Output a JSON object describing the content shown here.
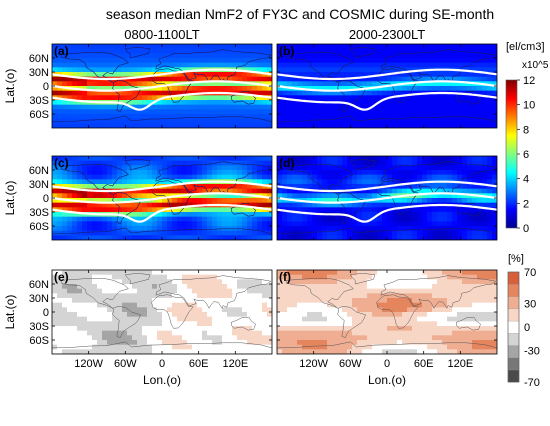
{
  "chart_data": {
    "type": "heatmap",
    "title": "season median NmF2 of FY3C and COSMIC during SE-month",
    "column_titles": [
      "0800-1100LT",
      "2000-2300LT"
    ],
    "xlabel": "Lon.(o)",
    "ylabel": "Lat.(o)",
    "x_ticks": [
      "120W",
      "60W",
      "0",
      "60E",
      "120E"
    ],
    "x_tick_values": [
      -120,
      -60,
      0,
      60,
      120
    ],
    "y_ticks": [
      "60N",
      "30N",
      "0",
      "30S",
      "60S"
    ],
    "y_tick_values": [
      60,
      30,
      0,
      -30,
      -60
    ],
    "xlim": [
      -180,
      180
    ],
    "ylim": [
      -90,
      90
    ],
    "panels": [
      {
        "label": "(a)",
        "local_time": "0800-1100LT",
        "row": 0,
        "col": 0,
        "kind": "density"
      },
      {
        "label": "(b)",
        "local_time": "2000-2300LT",
        "row": 0,
        "col": 1,
        "kind": "density"
      },
      {
        "label": "(c)",
        "local_time": "0800-1100LT",
        "row": 1,
        "col": 0,
        "kind": "density"
      },
      {
        "label": "(d)",
        "local_time": "2000-2300LT",
        "row": 1,
        "col": 1,
        "kind": "density"
      },
      {
        "label": "(e)",
        "local_time": "0800-1100LT",
        "row": 2,
        "col": 0,
        "kind": "difference"
      },
      {
        "label": "(f)",
        "local_time": "2000-2300LT",
        "row": 2,
        "col": 1,
        "kind": "difference"
      }
    ],
    "density_colorbar": {
      "unit": "[el/cm3]",
      "multiplier": "x10^5",
      "ticks": [
        12,
        10,
        8,
        6,
        4,
        2,
        0
      ],
      "range": [
        0,
        12
      ],
      "colors": [
        "#00008f",
        "#0000ff",
        "#0080ff",
        "#00ffff",
        "#80ff80",
        "#ffff00",
        "#ff8000",
        "#ff0000",
        "#800000"
      ]
    },
    "difference_colorbar": {
      "unit": "[%]",
      "ticks": [
        70,
        30,
        0,
        -30,
        -70
      ],
      "levels": [
        -70,
        -50,
        -30,
        -10,
        10,
        30,
        50,
        70
      ],
      "colors": [
        "#4a4a4a",
        "#777777",
        "#a5a5a5",
        "#d4d4d4",
        "#ffffff",
        "#f7d6c6",
        "#efae92",
        "#e5855e",
        "#d75f3a"
      ]
    }
  }
}
